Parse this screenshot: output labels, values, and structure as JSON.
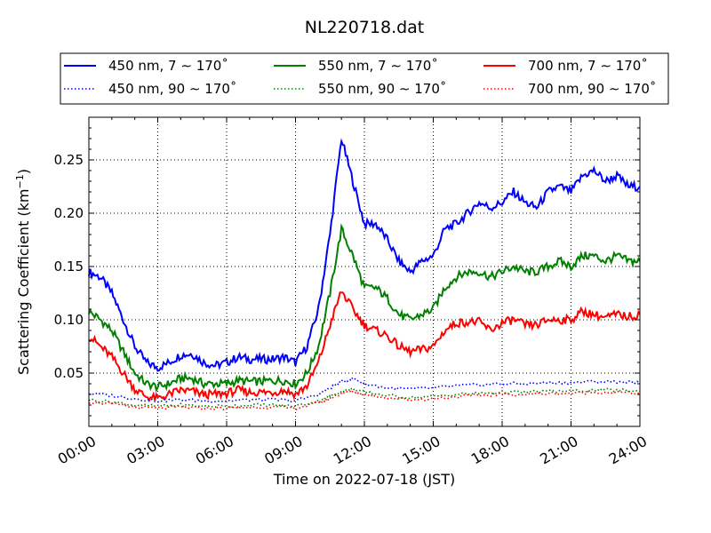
{
  "chart_data": {
    "type": "line",
    "title": "NL220718.dat",
    "xlabel": "Time on 2022-07-18 (JST)",
    "ylabel": "Scattering Coefficient (km",
    "ylabel_unit_exp": "−1",
    "ylabel_close": ")",
    "xlim": [
      0,
      24
    ],
    "ylim": [
      0.0,
      0.29
    ],
    "x_ticks": [
      0,
      3,
      6,
      9,
      12,
      15,
      18,
      21,
      24
    ],
    "x_tick_labels": [
      "00:00",
      "03:00",
      "06:00",
      "09:00",
      "12:00",
      "15:00",
      "18:00",
      "21:00",
      "24:00"
    ],
    "y_ticks": [
      0.05,
      0.1,
      0.15,
      0.2,
      0.25
    ],
    "y_tick_labels": [
      "0.05",
      "0.10",
      "0.15",
      "0.20",
      "0.25"
    ],
    "grid": true,
    "legend_placement": "top",
    "series": [
      {
        "name": "450 nm, 7 ∼ 170˚",
        "color": "#0000ff",
        "style": "solid",
        "x": [
          0,
          0.5,
          1,
          1.5,
          2,
          2.5,
          3,
          3.5,
          4,
          4.5,
          5,
          5.5,
          6,
          6.5,
          7,
          7.5,
          8,
          8.5,
          9,
          9.5,
          10,
          10.5,
          11,
          11.5,
          12,
          12.5,
          13,
          13.5,
          14,
          14.5,
          15,
          15.5,
          16,
          16.5,
          17,
          17.5,
          18,
          18.5,
          19,
          19.5,
          20,
          20.5,
          21,
          21.5,
          22,
          22.5,
          23,
          23.5,
          24
        ],
        "y": [
          0.145,
          0.14,
          0.125,
          0.1,
          0.075,
          0.06,
          0.055,
          0.06,
          0.067,
          0.068,
          0.06,
          0.057,
          0.06,
          0.065,
          0.063,
          0.063,
          0.063,
          0.065,
          0.06,
          0.075,
          0.11,
          0.18,
          0.27,
          0.23,
          0.19,
          0.19,
          0.175,
          0.155,
          0.145,
          0.155,
          0.16,
          0.185,
          0.19,
          0.2,
          0.21,
          0.205,
          0.21,
          0.22,
          0.21,
          0.205,
          0.22,
          0.225,
          0.22,
          0.235,
          0.24,
          0.23,
          0.235,
          0.225,
          0.225
        ]
      },
      {
        "name": "550 nm, 7 ∼ 170˚",
        "color": "#008000",
        "style": "solid",
        "x": [
          0,
          0.5,
          1,
          1.5,
          2,
          2.5,
          3,
          3.5,
          4,
          4.5,
          5,
          5.5,
          6,
          6.5,
          7,
          7.5,
          8,
          8.5,
          9,
          9.5,
          10,
          10.5,
          11,
          11.5,
          12,
          12.5,
          13,
          13.5,
          14,
          14.5,
          15,
          15.5,
          16,
          16.5,
          17,
          17.5,
          18,
          18.5,
          19,
          19.5,
          20,
          20.5,
          21,
          21.5,
          22,
          22.5,
          23,
          23.5,
          24
        ],
        "y": [
          0.108,
          0.1,
          0.09,
          0.07,
          0.05,
          0.04,
          0.037,
          0.04,
          0.045,
          0.045,
          0.04,
          0.04,
          0.04,
          0.043,
          0.042,
          0.042,
          0.043,
          0.043,
          0.04,
          0.05,
          0.075,
          0.125,
          0.185,
          0.16,
          0.13,
          0.13,
          0.12,
          0.105,
          0.1,
          0.105,
          0.11,
          0.13,
          0.14,
          0.145,
          0.145,
          0.14,
          0.145,
          0.15,
          0.145,
          0.145,
          0.15,
          0.155,
          0.15,
          0.16,
          0.16,
          0.155,
          0.16,
          0.155,
          0.155
        ]
      },
      {
        "name": "700 nm, 7 ∼ 170˚",
        "color": "#ff0000",
        "style": "solid",
        "x": [
          0,
          0.5,
          1,
          1.5,
          2,
          2.5,
          3,
          3.5,
          4,
          4.5,
          5,
          5.5,
          6,
          6.5,
          7,
          7.5,
          8,
          8.5,
          9,
          9.5,
          10,
          10.5,
          11,
          11.5,
          12,
          12.5,
          13,
          13.5,
          14,
          14.5,
          15,
          15.5,
          16,
          16.5,
          17,
          17.5,
          18,
          18.5,
          19,
          19.5,
          20,
          20.5,
          21,
          21.5,
          22,
          22.5,
          23,
          23.5,
          24
        ],
        "y": [
          0.085,
          0.075,
          0.065,
          0.05,
          0.035,
          0.028,
          0.026,
          0.03,
          0.034,
          0.033,
          0.03,
          0.03,
          0.031,
          0.034,
          0.032,
          0.032,
          0.032,
          0.034,
          0.03,
          0.038,
          0.06,
          0.095,
          0.127,
          0.11,
          0.095,
          0.09,
          0.085,
          0.075,
          0.07,
          0.072,
          0.075,
          0.09,
          0.097,
          0.098,
          0.098,
          0.09,
          0.097,
          0.1,
          0.095,
          0.095,
          0.1,
          0.1,
          0.1,
          0.108,
          0.105,
          0.102,
          0.105,
          0.103,
          0.105
        ]
      },
      {
        "name": "450 nm, 90 ∼ 170˚",
        "color": "#0000ff",
        "style": "dotted",
        "x": [
          0,
          1,
          2,
          3,
          4,
          5,
          6,
          7,
          8,
          9,
          10,
          10.5,
          11,
          11.5,
          12,
          13,
          14,
          15,
          16,
          17,
          18,
          19,
          20,
          21,
          22,
          23,
          24
        ],
        "y": [
          0.031,
          0.029,
          0.026,
          0.024,
          0.025,
          0.024,
          0.024,
          0.025,
          0.025,
          0.024,
          0.03,
          0.036,
          0.042,
          0.045,
          0.04,
          0.036,
          0.035,
          0.036,
          0.038,
          0.039,
          0.04,
          0.04,
          0.041,
          0.041,
          0.042,
          0.042,
          0.041
        ]
      },
      {
        "name": "550 nm, 90 ∼ 170˚",
        "color": "#008000",
        "style": "dotted",
        "x": [
          0,
          1,
          2,
          3,
          4,
          5,
          6,
          7,
          8,
          9,
          10,
          10.5,
          11,
          11.5,
          12,
          13,
          14,
          15,
          16,
          17,
          18,
          19,
          20,
          21,
          22,
          23,
          24
        ],
        "y": [
          0.025,
          0.023,
          0.02,
          0.019,
          0.02,
          0.019,
          0.019,
          0.02,
          0.02,
          0.019,
          0.024,
          0.028,
          0.033,
          0.035,
          0.032,
          0.029,
          0.027,
          0.028,
          0.03,
          0.031,
          0.032,
          0.032,
          0.033,
          0.033,
          0.034,
          0.034,
          0.033
        ]
      },
      {
        "name": "700 nm, 90 ∼ 170˚",
        "color": "#ff0000",
        "style": "dotted",
        "x": [
          0,
          1,
          2,
          3,
          4,
          5,
          6,
          7,
          8,
          9,
          10,
          10.5,
          11,
          11.5,
          12,
          13,
          14,
          15,
          16,
          17,
          18,
          19,
          20,
          21,
          22,
          23,
          24
        ],
        "y": [
          0.023,
          0.021,
          0.018,
          0.017,
          0.018,
          0.017,
          0.017,
          0.018,
          0.018,
          0.017,
          0.022,
          0.026,
          0.031,
          0.033,
          0.03,
          0.027,
          0.025,
          0.026,
          0.028,
          0.029,
          0.03,
          0.03,
          0.031,
          0.031,
          0.032,
          0.032,
          0.031
        ]
      }
    ]
  }
}
